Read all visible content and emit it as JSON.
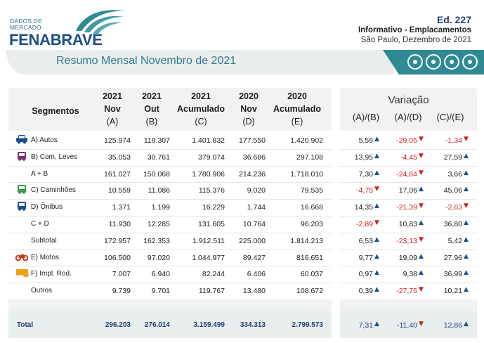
{
  "header": {
    "logo_line1": "DADOS DE",
    "logo_line2": "MERCADO",
    "logo_main": "FENABRAVE",
    "edition": "Ed. 227",
    "subtitle": "Informativo - Emplacamentos",
    "city_date": "São Paulo, Dezembro de 2021",
    "banner_title": "Resumo Mensal Novembro de 2021"
  },
  "colors": {
    "brand_blue": "#1d4f84",
    "teal": "#2f8a94",
    "negative": "#d21f1f",
    "arrow_up": "#1e4f8f"
  },
  "table": {
    "segment_header": "Segmentos",
    "columns": [
      {
        "l1": "2021",
        "l2": "Nov",
        "l3": "(A)"
      },
      {
        "l1": "2021",
        "l2": "Out",
        "l3": "(B)"
      },
      {
        "l1": "2021",
        "l2": "Acumulado",
        "l3": "(C)"
      },
      {
        "l1": "2020",
        "l2": "Nov",
        "l3": "(D)"
      },
      {
        "l1": "2020",
        "l2": "Acumulado",
        "l3": "(E)"
      }
    ],
    "variation_title": "Variação",
    "variation_headers": [
      "(A)/(B)",
      "(A)/(D)",
      "(C)/(E)"
    ],
    "rows": [
      {
        "label": "A) Autos",
        "icon": "car-icon",
        "values": [
          "125.974",
          "119.307",
          "1.401.832",
          "177.550",
          "1.420.902"
        ],
        "var": [
          [
            "5,59",
            "up"
          ],
          [
            "-29,05",
            "down"
          ],
          [
            "-1,34",
            "down"
          ]
        ]
      },
      {
        "label": "B) Com. Leves",
        "icon": "van-icon",
        "values": [
          "35.053",
          "30.761",
          "379.074",
          "36.686",
          "297.108"
        ],
        "var": [
          [
            "13,95",
            "up"
          ],
          [
            "-4,45",
            "down"
          ],
          [
            "27,59",
            "up"
          ]
        ]
      },
      {
        "label": "A + B",
        "icon": "",
        "values": [
          "161.027",
          "150.068",
          "1.780.906",
          "214.236",
          "1.718.010"
        ],
        "var": [
          [
            "7,30",
            "up"
          ],
          [
            "-24,84",
            "down"
          ],
          [
            "3,66",
            "up"
          ]
        ]
      },
      {
        "label": "C) Caminhões",
        "icon": "truck-icon",
        "values": [
          "10.559",
          "11.086",
          "115.376",
          "9.020",
          "79.535"
        ],
        "var": [
          [
            "-4,75",
            "down"
          ],
          [
            "17,06",
            "up"
          ],
          [
            "45,06",
            "up"
          ]
        ]
      },
      {
        "label": "D) Ônibus",
        "icon": "bus-icon",
        "values": [
          "1.371",
          "1.199",
          "16.229",
          "1.744",
          "16.668"
        ],
        "var": [
          [
            "14,35",
            "up"
          ],
          [
            "-21,39",
            "down"
          ],
          [
            "-2,63",
            "down"
          ]
        ]
      },
      {
        "label": "C + D",
        "icon": "",
        "values": [
          "11.930",
          "12.285",
          "131.605",
          "10.764",
          "96.203"
        ],
        "var": [
          [
            "-2,89",
            "down"
          ],
          [
            "10,83",
            "up"
          ],
          [
            "36,80",
            "up"
          ]
        ]
      },
      {
        "label": "Subtotal",
        "icon": "",
        "values": [
          "172.957",
          "162.353",
          "1.912.511",
          "225.000",
          "1.814.213"
        ],
        "var": [
          [
            "6,53",
            "up"
          ],
          [
            "-23,13",
            "down"
          ],
          [
            "5,42",
            "up"
          ]
        ]
      },
      {
        "label": "E) Motos",
        "icon": "motorcycle-icon",
        "values": [
          "106.500",
          "97.020",
          "1.044.977",
          "89.427",
          "816.651"
        ],
        "var": [
          [
            "9,77",
            "up"
          ],
          [
            "19,09",
            "up"
          ],
          [
            "27,96",
            "up"
          ]
        ]
      },
      {
        "label": "F) Impl. Rod.",
        "icon": "trailer-icon",
        "values": [
          "7.007",
          "6.940",
          "82.244",
          "6.406",
          "60.037"
        ],
        "var": [
          [
            "0,97",
            "up"
          ],
          [
            "9,38",
            "up"
          ],
          [
            "36,99",
            "up"
          ]
        ]
      },
      {
        "label": "Outros",
        "icon": "",
        "values": [
          "9.739",
          "9.701",
          "119.767",
          "13.480",
          "108.672"
        ],
        "var": [
          [
            "0,39",
            "up"
          ],
          [
            "-27,75",
            "down"
          ],
          [
            "10,21",
            "up"
          ]
        ]
      }
    ],
    "total": {
      "label": "Total",
      "values": [
        "296.203",
        "276.014",
        "3.159.499",
        "334.313",
        "2.799.573"
      ],
      "var": [
        [
          "7,31",
          "up"
        ],
        [
          "-11,40",
          "down"
        ],
        [
          "12,86",
          "up"
        ]
      ]
    }
  }
}
